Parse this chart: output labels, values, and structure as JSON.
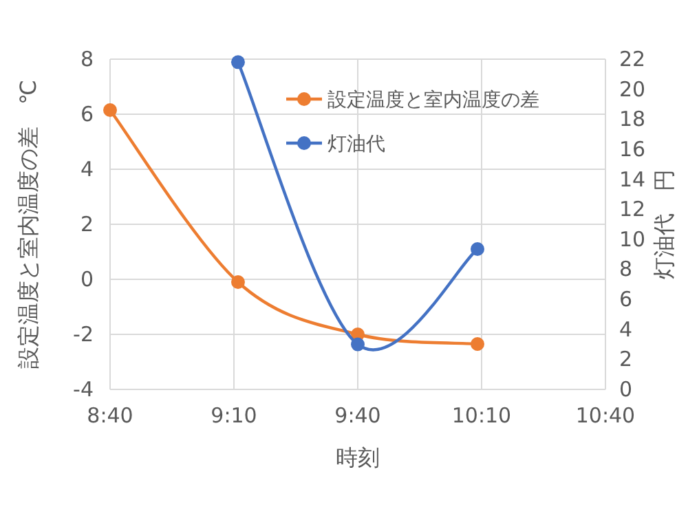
{
  "chart_data": {
    "type": "line",
    "xlabel": "時刻",
    "ylabel": "設定温度と室内温度の差　℃",
    "y2label": "灯油代　円",
    "xlim": [
      8.6667,
      10.6667
    ],
    "xticks": [
      {
        "value": 8.6667,
        "label": "8:40"
      },
      {
        "value": 9.1667,
        "label": "9:10"
      },
      {
        "value": 9.6667,
        "label": "9:40"
      },
      {
        "value": 10.1667,
        "label": "10:10"
      },
      {
        "value": 10.6667,
        "label": "10:40"
      }
    ],
    "ylim": [
      -4,
      8
    ],
    "yticks": [
      -4,
      -2,
      0,
      2,
      4,
      6,
      8
    ],
    "y2lim": [
      0,
      22
    ],
    "y2ticks": [
      0,
      2,
      4,
      6,
      8,
      10,
      12,
      14,
      16,
      18,
      20,
      22
    ],
    "grid": true,
    "legend": "top right",
    "marker": "circle",
    "line_style": "solid",
    "series": [
      {
        "name": "設定温度と室内温度の差",
        "color": "#ed7d31",
        "x": [
          8.6667,
          9.1833,
          9.6667,
          10.15
        ],
        "values": [
          6.15,
          -0.1,
          -2.0,
          -2.35
        ]
      },
      {
        "name": "灯油代",
        "color": "#4472c4",
        "axis": "y2",
        "x": [
          9.1833,
          9.6667,
          10.15
        ],
        "values": [
          21.8,
          3.0,
          9.35
        ]
      }
    ]
  }
}
